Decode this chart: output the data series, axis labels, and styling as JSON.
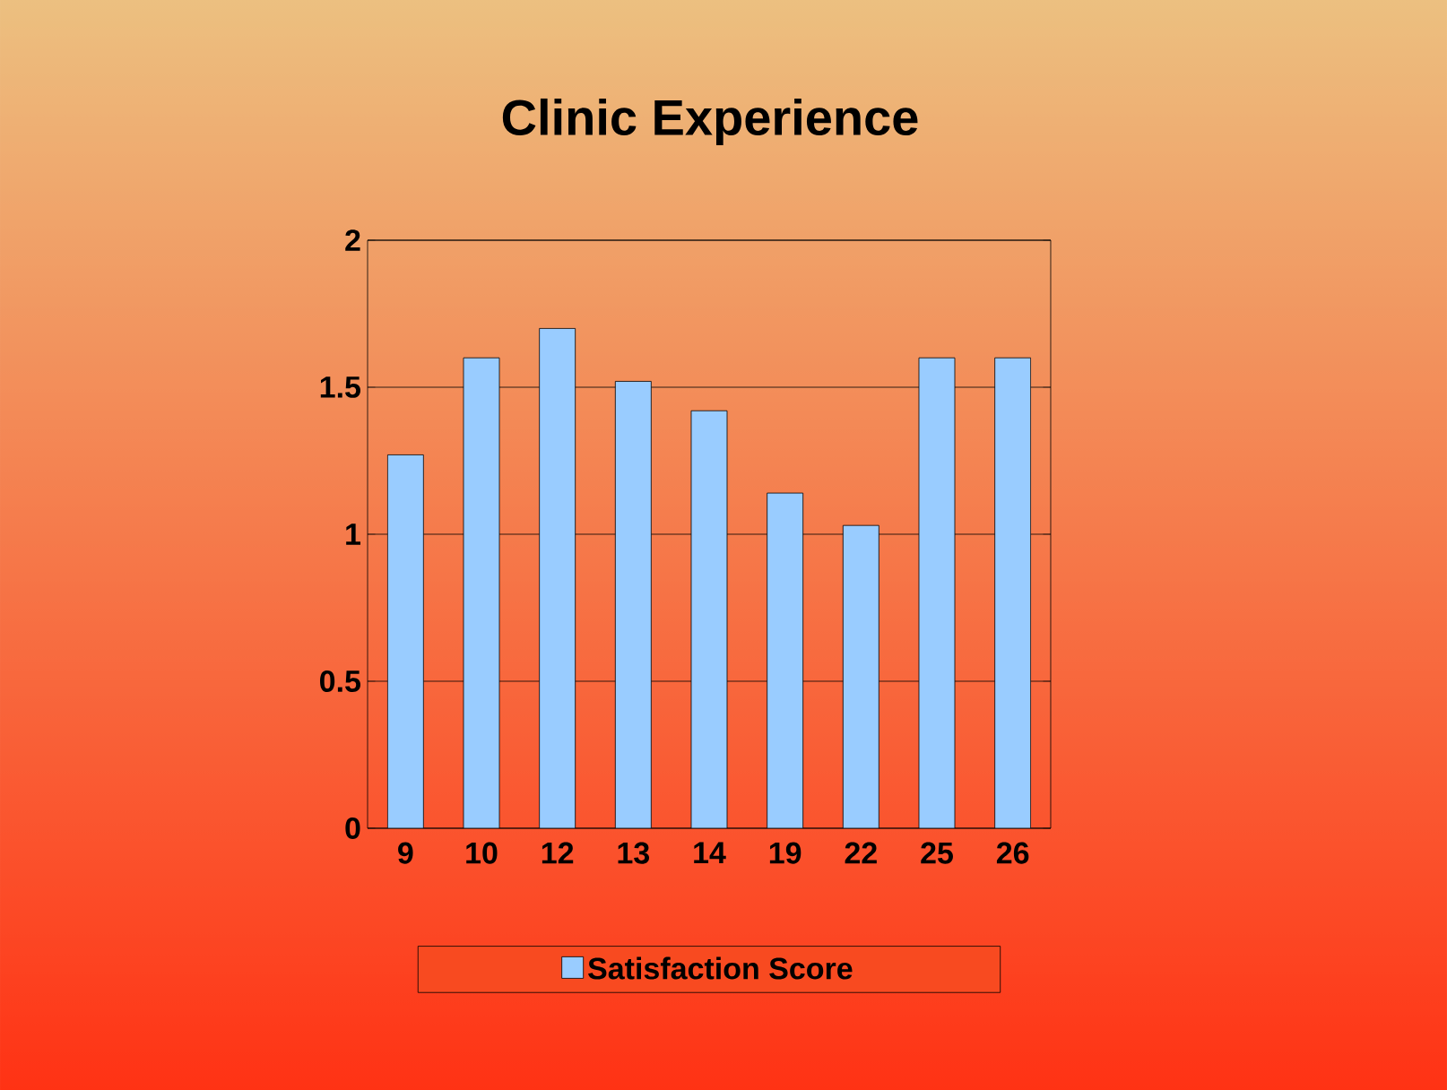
{
  "chart_data": {
    "type": "bar",
    "title": "Clinic Experience",
    "categories": [
      "9",
      "10",
      "12",
      "13",
      "14",
      "19",
      "22",
      "25",
      "26"
    ],
    "series": [
      {
        "name": "Satisfaction Score",
        "color": "#99ccff",
        "values": [
          1.27,
          1.6,
          1.7,
          1.52,
          1.42,
          1.14,
          1.03,
          1.6,
          1.6
        ]
      }
    ],
    "ylim": [
      0,
      2
    ],
    "yticks": [
      0,
      0.5,
      1,
      1.5,
      2
    ],
    "grid": "y",
    "legend": "bottom"
  }
}
